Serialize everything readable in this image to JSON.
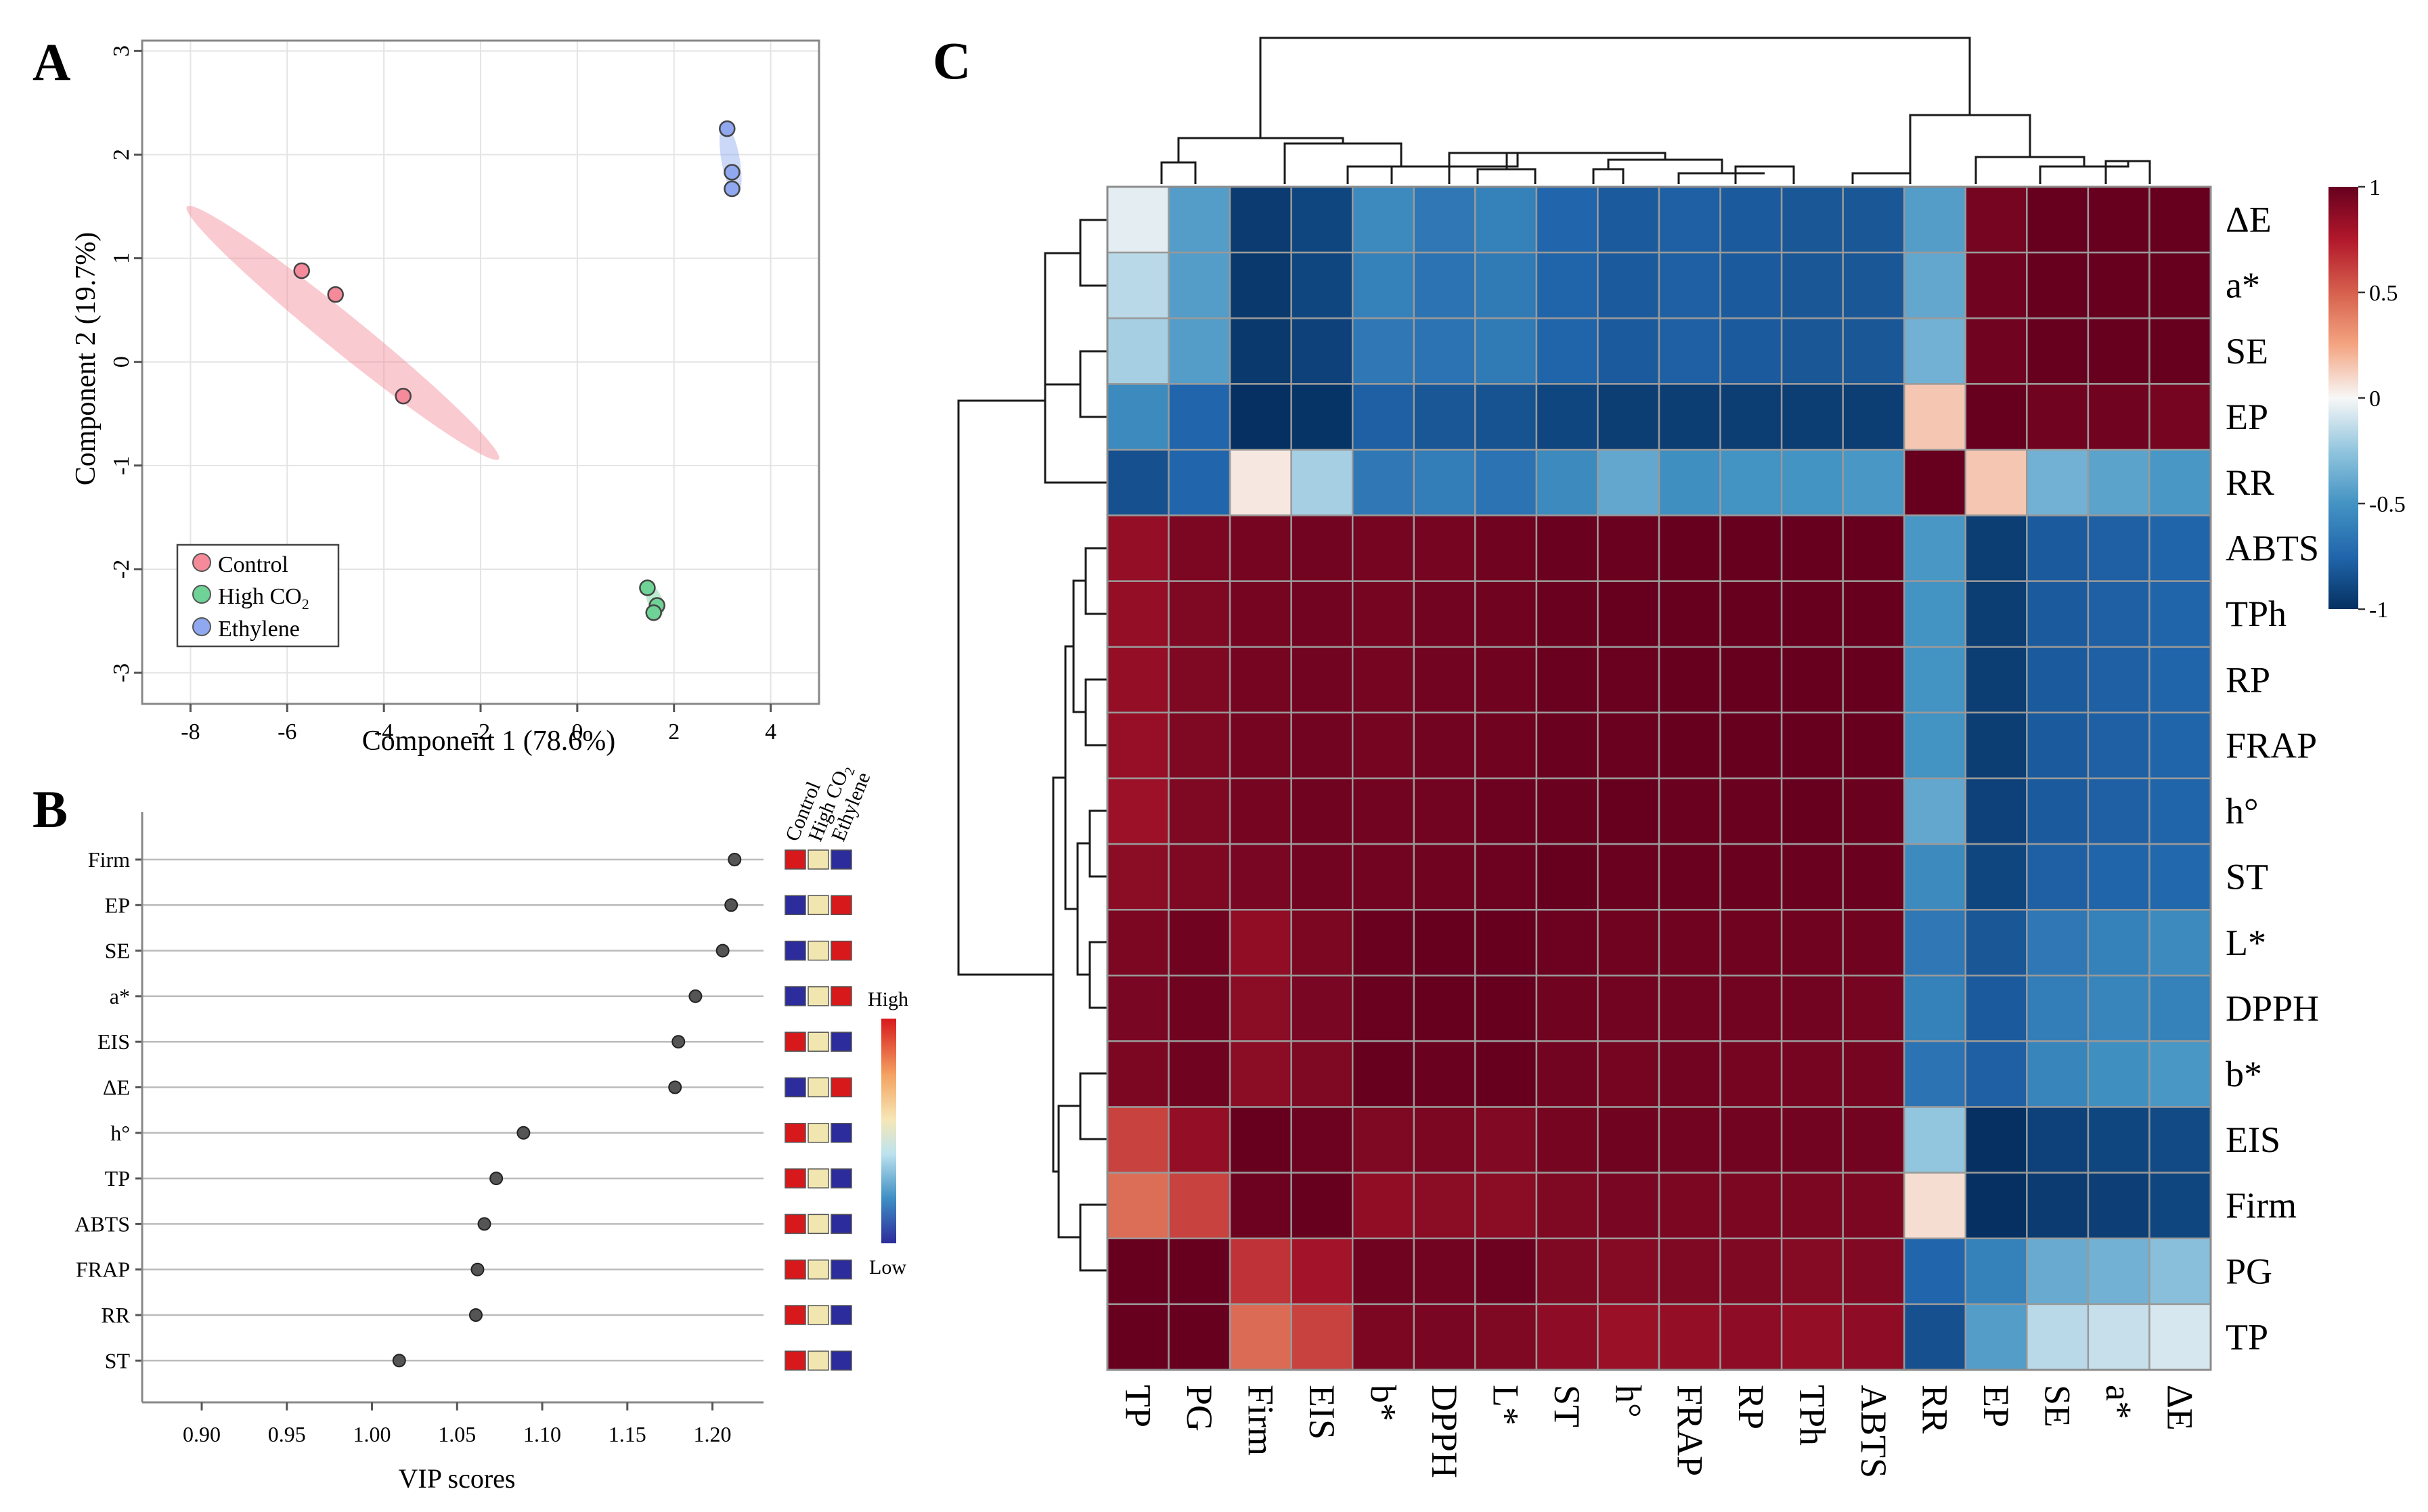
{
  "figure": {
    "panel_a": "A",
    "panel_b": "B",
    "panel_c": "C"
  },
  "colors": {
    "control": "#F48A9A",
    "high_co2": "#6FD296",
    "ethylene": "#8FA8F0",
    "grid": "#e4e4e4",
    "border": "#888888",
    "vip_high": "#D7191C",
    "vip_mid": "#F2E6B0",
    "vip_low": "#2C2C9C"
  },
  "chart_data": [
    {
      "type": "scatter",
      "panel": "A",
      "xlabel": "Component 1 (78.6%)",
      "ylabel": "Component 2 (19.7%)",
      "xlim": [
        -9,
        5
      ],
      "ylim": [
        -3.3,
        3.1
      ],
      "xticks": [
        -8,
        -6,
        -4,
        -2,
        0,
        2,
        4
      ],
      "yticks": [
        -3,
        -2,
        -1,
        0,
        1,
        2,
        3
      ],
      "xtick_labels": [
        "-8",
        "-6",
        "-4",
        "-2",
        "0",
        "2",
        "4"
      ],
      "ytick_labels": [
        "-3",
        "-2",
        "-1",
        "0",
        "1",
        "2",
        "3"
      ],
      "grid": true,
      "legend_position": "bottom-left",
      "series": [
        {
          "name": "Control",
          "label": "Control",
          "x": [
            -5.7,
            -5.0,
            -3.6
          ],
          "y": [
            0.88,
            0.65,
            -0.33
          ]
        },
        {
          "name": "High CO2",
          "label_main": "High CO",
          "label_sub": "2",
          "x": [
            1.45,
            1.65,
            1.58
          ],
          "y": [
            -2.18,
            -2.35,
            -2.42
          ]
        },
        {
          "name": "Ethylene",
          "label": "Ethylene",
          "x": [
            3.1,
            3.2,
            3.2
          ],
          "y": [
            2.25,
            1.83,
            1.67
          ]
        }
      ]
    },
    {
      "type": "scatter",
      "panel": "B",
      "xlabel": "VIP scores",
      "xlim": [
        0.865,
        1.23
      ],
      "xticks": [
        0.9,
        0.95,
        1.0,
        1.05,
        1.1,
        1.15,
        1.2
      ],
      "xtick_labels": [
        "0.90",
        "0.95",
        "1.00",
        "1.05",
        "1.10",
        "1.15",
        "1.20"
      ],
      "columns": [
        "Control",
        "High CO",
        "Ethylene"
      ],
      "column_high_sub": "2",
      "legend_high": "High",
      "legend_low": "Low",
      "items": [
        {
          "label": "Firm",
          "vip": 1.213,
          "pattern": [
            "high",
            "mid",
            "low"
          ]
        },
        {
          "label": "EP",
          "vip": 1.211,
          "pattern": [
            "low",
            "mid",
            "high"
          ]
        },
        {
          "label": "SE",
          "vip": 1.206,
          "pattern": [
            "low",
            "mid",
            "high"
          ]
        },
        {
          "label": "a*",
          "vip": 1.19,
          "pattern": [
            "low",
            "mid",
            "high"
          ]
        },
        {
          "label": "EIS",
          "vip": 1.18,
          "pattern": [
            "high",
            "mid",
            "low"
          ]
        },
        {
          "label": "ΔE",
          "vip": 1.178,
          "pattern": [
            "low",
            "mid",
            "high"
          ]
        },
        {
          "label": "h°",
          "vip": 1.089,
          "pattern": [
            "high",
            "mid",
            "low"
          ]
        },
        {
          "label": "TP",
          "vip": 1.073,
          "pattern": [
            "high",
            "mid",
            "low"
          ]
        },
        {
          "label": "ABTS",
          "vip": 1.066,
          "pattern": [
            "high",
            "mid",
            "low"
          ]
        },
        {
          "label": "FRAP",
          "vip": 1.062,
          "pattern": [
            "high",
            "mid",
            "low"
          ]
        },
        {
          "label": "RR",
          "vip": 1.061,
          "pattern": [
            "high",
            "mid",
            "low"
          ]
        },
        {
          "label": "ST",
          "vip": 1.016,
          "pattern": [
            "high",
            "mid",
            "low"
          ]
        }
      ]
    },
    {
      "type": "heatmap",
      "panel": "C",
      "columns": [
        "TP",
        "PG",
        "Firm",
        "EIS",
        "b*",
        "DPPH",
        "L*",
        "ST",
        "h°",
        "FRAP",
        "RP",
        "TPh",
        "ABTS",
        "RR",
        "EP",
        "SE",
        "a*",
        "ΔE"
      ],
      "rows": [
        "ΔE",
        "a*",
        "SE",
        "EP",
        "RR",
        "ABTS",
        "TPh",
        "RP",
        "FRAP",
        "h°",
        "ST",
        "L*",
        "DPPH",
        "b*",
        "EIS",
        "Firm",
        "PG",
        "TP"
      ],
      "colorbar": {
        "min": -1,
        "max": 1,
        "ticks": [
          1,
          0.5,
          0,
          -0.5,
          -1
        ],
        "tick_labels": [
          "1",
          "0.5",
          "0",
          "-0.5",
          "-1"
        ]
      },
      "values": [
        [
          -0.05,
          -0.45,
          -0.95,
          -0.9,
          -0.55,
          -0.65,
          -0.6,
          -0.75,
          -0.8,
          -0.78,
          -0.8,
          -0.82,
          -0.82,
          -0.45,
          0.95,
          1.0,
          1.0,
          1.0
        ],
        [
          -0.15,
          -0.45,
          -0.96,
          -0.9,
          -0.6,
          -0.68,
          -0.64,
          -0.76,
          -0.8,
          -0.78,
          -0.8,
          -0.82,
          -0.82,
          -0.4,
          0.97,
          1.0,
          1.0,
          1.0
        ],
        [
          -0.2,
          -0.45,
          -0.96,
          -0.92,
          -0.65,
          -0.68,
          -0.64,
          -0.76,
          -0.8,
          -0.78,
          -0.8,
          -0.82,
          -0.82,
          -0.35,
          0.97,
          1.0,
          1.0,
          1.0
        ],
        [
          -0.55,
          -0.75,
          -1.0,
          -0.98,
          -0.78,
          -0.82,
          -0.84,
          -0.9,
          -0.94,
          -0.94,
          -0.94,
          -0.94,
          -0.94,
          0.15,
          1.0,
          0.97,
          0.97,
          0.95
        ],
        [
          -0.85,
          -0.75,
          0.05,
          -0.2,
          -0.65,
          -0.62,
          -0.68,
          -0.55,
          -0.4,
          -0.52,
          -0.5,
          -0.5,
          -0.48,
          1.0,
          0.15,
          -0.35,
          -0.42,
          -0.48
        ],
        [
          0.85,
          0.93,
          0.95,
          0.96,
          0.95,
          0.95,
          0.97,
          0.99,
          0.99,
          1.0,
          1.0,
          1.0,
          1.0,
          -0.48,
          -0.94,
          -0.8,
          -0.78,
          -0.76
        ],
        [
          0.85,
          0.92,
          0.95,
          0.96,
          0.95,
          0.96,
          0.97,
          0.99,
          1.0,
          1.0,
          1.0,
          1.0,
          1.0,
          -0.5,
          -0.94,
          -0.8,
          -0.78,
          -0.76
        ],
        [
          0.85,
          0.92,
          0.95,
          0.96,
          0.95,
          0.96,
          0.97,
          0.99,
          0.99,
          1.0,
          1.0,
          1.0,
          1.0,
          -0.5,
          -0.94,
          -0.8,
          -0.78,
          -0.76
        ],
        [
          0.84,
          0.92,
          0.95,
          0.96,
          0.95,
          0.96,
          0.97,
          0.99,
          0.99,
          1.0,
          1.0,
          1.0,
          1.0,
          -0.5,
          -0.94,
          -0.8,
          -0.78,
          -0.76
        ],
        [
          0.82,
          0.92,
          0.95,
          0.97,
          0.96,
          0.96,
          0.98,
          0.99,
          1.0,
          0.99,
          0.99,
          1.0,
          0.99,
          -0.4,
          -0.92,
          -0.8,
          -0.78,
          -0.76
        ],
        [
          0.88,
          0.92,
          0.94,
          0.96,
          0.96,
          0.97,
          0.98,
          1.0,
          0.99,
          0.99,
          0.99,
          0.99,
          0.99,
          -0.55,
          -0.9,
          -0.78,
          -0.76,
          -0.74
        ],
        [
          0.93,
          0.97,
          0.86,
          0.93,
          0.99,
          1.0,
          1.0,
          0.98,
          0.97,
          0.97,
          0.97,
          0.97,
          0.97,
          -0.65,
          -0.82,
          -0.65,
          -0.6,
          -0.55
        ],
        [
          0.94,
          0.97,
          0.88,
          0.94,
          0.99,
          1.0,
          1.0,
          0.97,
          0.96,
          0.96,
          0.96,
          0.96,
          0.95,
          -0.6,
          -0.8,
          -0.62,
          -0.58,
          -0.6
        ],
        [
          0.93,
          0.97,
          0.88,
          0.92,
          1.0,
          0.99,
          1.0,
          0.96,
          0.95,
          0.96,
          0.95,
          0.95,
          0.95,
          -0.68,
          -0.78,
          -0.58,
          -0.52,
          -0.48
        ],
        [
          0.6,
          0.85,
          1.0,
          0.98,
          0.92,
          0.93,
          0.91,
          0.95,
          0.97,
          0.96,
          0.96,
          0.96,
          0.96,
          -0.25,
          -1.0,
          -0.92,
          -0.9,
          -0.88
        ],
        [
          0.45,
          0.6,
          0.98,
          1.0,
          0.86,
          0.88,
          0.88,
          0.92,
          0.94,
          0.93,
          0.93,
          0.93,
          0.93,
          0.08,
          -1.0,
          -0.95,
          -0.93,
          -0.9
        ],
        [
          1.0,
          1.0,
          0.66,
          0.8,
          0.97,
          0.96,
          0.98,
          0.92,
          0.9,
          0.92,
          0.92,
          0.9,
          0.91,
          -0.75,
          -0.6,
          -0.38,
          -0.35,
          -0.28
        ],
        [
          1.0,
          1.0,
          0.46,
          0.6,
          0.93,
          0.94,
          0.92,
          0.87,
          0.83,
          0.85,
          0.87,
          0.85,
          0.87,
          -0.85,
          -0.45,
          -0.15,
          -0.12,
          -0.08
        ]
      ]
    }
  ]
}
